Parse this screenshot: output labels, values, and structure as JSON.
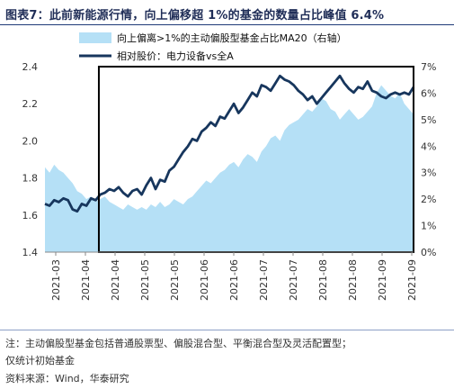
{
  "figure": {
    "label": "图表7：",
    "title": "此前新能源行情，向上偏移超 1%的基金的数量占比峰值 6.4%"
  },
  "colors": {
    "area": "#b5e0f6",
    "line": "#17365d",
    "box": "#000000"
  },
  "chart_data": {
    "type": "area",
    "series": [
      {
        "name": "向上偏离>1%的主动偏股型基金占比MA20（右轴）",
        "type": "area",
        "axis": "right",
        "x": [
          0,
          1,
          2,
          3,
          4,
          5,
          6,
          7,
          8,
          9,
          10,
          11,
          12,
          13,
          14,
          15,
          16,
          17,
          18,
          19,
          20,
          21,
          22,
          23,
          24,
          25,
          26,
          27,
          28,
          29,
          30,
          31,
          32,
          33,
          34,
          35,
          36,
          37,
          38,
          39,
          40,
          41,
          42,
          43,
          44,
          45,
          46,
          47,
          48,
          49,
          50,
          51,
          52,
          53,
          54,
          55,
          56,
          57,
          58,
          59,
          60,
          61,
          62,
          63,
          64,
          65,
          66,
          67,
          68,
          69,
          70,
          71,
          72,
          73,
          74,
          75,
          76,
          77,
          78,
          79,
          80
        ],
        "values": [
          3.2,
          3.0,
          3.3,
          3.1,
          3.0,
          2.8,
          2.6,
          2.3,
          2.2,
          2.0,
          2.1,
          1.9,
          2.0,
          2.1,
          1.9,
          1.8,
          1.7,
          1.6,
          1.8,
          1.7,
          1.6,
          1.7,
          1.6,
          1.8,
          1.7,
          1.9,
          1.7,
          1.8,
          2.0,
          1.9,
          1.8,
          2.0,
          2.1,
          2.3,
          2.5,
          2.7,
          2.6,
          2.8,
          3.0,
          3.1,
          3.3,
          3.4,
          3.2,
          3.5,
          3.7,
          3.6,
          3.4,
          3.8,
          4.0,
          4.3,
          4.4,
          4.2,
          4.6,
          4.8,
          4.9,
          5.0,
          5.2,
          5.4,
          5.3,
          5.5,
          5.8,
          5.7,
          5.4,
          5.3,
          5.0,
          5.2,
          5.4,
          5.2,
          5.0,
          5.1,
          5.3,
          5.5,
          6.0,
          6.3,
          6.1,
          5.9,
          5.8,
          6.0,
          5.6,
          5.4,
          5.2
        ]
      },
      {
        "name": "相对股价：电力设备vs全A",
        "type": "line",
        "axis": "left",
        "x": [
          0,
          1,
          2,
          3,
          4,
          5,
          6,
          7,
          8,
          9,
          10,
          11,
          12,
          13,
          14,
          15,
          16,
          17,
          18,
          19,
          20,
          21,
          22,
          23,
          24,
          25,
          26,
          27,
          28,
          29,
          30,
          31,
          32,
          33,
          34,
          35,
          36,
          37,
          38,
          39,
          40,
          41,
          42,
          43,
          44,
          45,
          46,
          47,
          48,
          49,
          50,
          51,
          52,
          53,
          54,
          55,
          56,
          57,
          58,
          59,
          60,
          61,
          62,
          63,
          64,
          65,
          66,
          67,
          68,
          69,
          70,
          71,
          72,
          73,
          74,
          75,
          76,
          77,
          78,
          79,
          80
        ],
        "values": [
          1.66,
          1.65,
          1.68,
          1.67,
          1.69,
          1.68,
          1.63,
          1.62,
          1.66,
          1.65,
          1.69,
          1.68,
          1.71,
          1.72,
          1.74,
          1.73,
          1.75,
          1.72,
          1.7,
          1.73,
          1.74,
          1.71,
          1.76,
          1.8,
          1.74,
          1.79,
          1.78,
          1.84,
          1.86,
          1.9,
          1.94,
          1.97,
          2.01,
          2.0,
          2.05,
          2.07,
          2.1,
          2.08,
          2.13,
          2.12,
          2.16,
          2.2,
          2.15,
          2.18,
          2.22,
          2.26,
          2.24,
          2.3,
          2.29,
          2.27,
          2.31,
          2.35,
          2.33,
          2.32,
          2.3,
          2.27,
          2.25,
          2.22,
          2.24,
          2.2,
          2.23,
          2.26,
          2.29,
          2.32,
          2.35,
          2.31,
          2.28,
          2.26,
          2.29,
          2.28,
          2.32,
          2.27,
          2.26,
          2.24,
          2.23,
          2.25,
          2.26,
          2.25,
          2.26,
          2.25,
          2.29
        ]
      }
    ],
    "x_ticks": [
      "2021-03",
      "2021-04",
      "2021-05",
      "2021-06",
      "2021-07",
      "2021-08",
      "2021-09"
    ],
    "x_minor_ticks": [
      "2021-04",
      "2021-05",
      "2021-06",
      "2021-07",
      "2021-08",
      "2021-09",
      "2021-09"
    ],
    "x_tick_labels": [
      "2021-03",
      "2021-04",
      "2021-04",
      "2021-05",
      "2021-05",
      "2021-06",
      "2021-06",
      "2021-07",
      "2021-07",
      "2021-08",
      "2021-08",
      "2021-09",
      "2021-09"
    ],
    "y_left": {
      "min": 1.4,
      "max": 2.4,
      "ticks": [
        "1.4",
        "1.6",
        "1.8",
        "2.0",
        "2.2",
        "2.4"
      ]
    },
    "y_right": {
      "min": 0,
      "max": 7,
      "ticks": [
        "0%",
        "1%",
        "2%",
        "3%",
        "4%",
        "5%",
        "6%",
        "7%"
      ]
    },
    "highlight_box": {
      "x_start": 11.7,
      "x_end": 80,
      "y_bottom": 1.4,
      "y_top": 2.4
    },
    "legend_position": "top-left",
    "grid": false
  },
  "notes": {
    "line1": "注：主动偏股型基金包括普通股票型、偏股混合型、平衡混合型及灵活配置型；",
    "line2": "仅统计初始基金",
    "source": "资料来源：Wind，华泰研究"
  }
}
